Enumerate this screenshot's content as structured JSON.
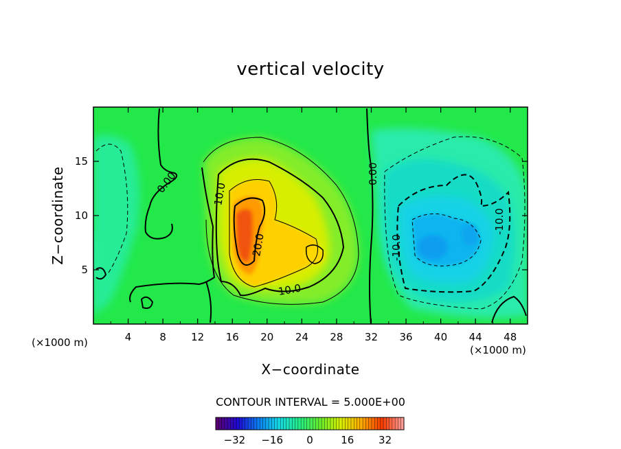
{
  "chart_data": {
    "type": "heatmap",
    "title": "vertical velocity",
    "xlabel": "X−coordinate",
    "ylabel": "Z−coordinate",
    "x_unit_label": "(×1000 m)",
    "y_unit_label": "(×1000 m)",
    "xlim": [
      0,
      50
    ],
    "ylim": [
      0,
      20
    ],
    "x_ticks": [
      4,
      8,
      12,
      16,
      20,
      24,
      28,
      32,
      36,
      40,
      44,
      48
    ],
    "y_ticks": [
      5,
      10,
      15
    ],
    "contour_interval_text": "CONTOUR INTERVAL = 5.000E+00",
    "contour_interval": 5.0,
    "colorbar": {
      "range": [
        -40,
        40
      ],
      "ticks": [
        -32,
        -16,
        0,
        16,
        32
      ],
      "colors": [
        "#5a0072",
        "#1e0bd2",
        "#0a7df0",
        "#17d9e6",
        "#23ec85",
        "#66ec2e",
        "#d7ee00",
        "#ffab00",
        "#f43b00",
        "#ff9a96"
      ]
    },
    "contour_labels": [
      "0.00",
      "10.0",
      "20.0",
      "10.0",
      "0.00",
      "-10.0",
      "-10.0"
    ],
    "features": [
      {
        "label": "updraft_maximum",
        "x": 17.5,
        "z": 8.0,
        "value": 28
      },
      {
        "label": "updraft_secondary",
        "x": 25.5,
        "z": 6.5,
        "value": 16
      },
      {
        "label": "downdraft_minimum",
        "x": 39.0,
        "z": 7.0,
        "value": -14
      },
      {
        "label": "downdraft_secondary",
        "x": 43.5,
        "z": 8.5,
        "value": -11
      }
    ],
    "grid": false
  }
}
